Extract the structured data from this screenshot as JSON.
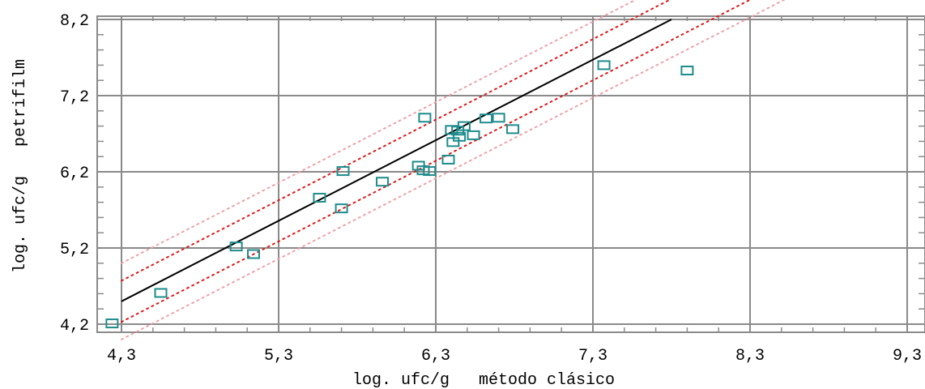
{
  "chart_data": {
    "type": "scatter",
    "title": "",
    "xlabel": "log. ufc/g   método clásico",
    "ylabel": "log. ufc/g   petrifilm",
    "xlim": [
      4.15,
      9.3
    ],
    "ylim": [
      4.15,
      8.2
    ],
    "xticks": [
      4.3,
      5.3,
      6.3,
      7.3,
      8.3,
      9.3
    ],
    "xtick_labels": [
      "4,3",
      "5,3",
      "6,3",
      "7,3",
      "8,3",
      "9,3"
    ],
    "yticks": [
      4.2,
      5.2,
      6.2,
      7.2,
      8.2
    ],
    "ytick_labels": [
      "4,2",
      "5,2",
      "6,2",
      "7,2",
      "8,2"
    ],
    "grid": true,
    "points": {
      "x": [
        4.24,
        4.55,
        5.03,
        5.14,
        5.56,
        5.7,
        5.71,
        5.96,
        6.19,
        6.22,
        6.23,
        6.26,
        6.38,
        6.4,
        6.41,
        6.44,
        6.45,
        6.48,
        6.54,
        6.62,
        6.7,
        6.79,
        7.37,
        7.9
      ],
      "y": [
        4.21,
        4.61,
        5.22,
        5.12,
        5.86,
        5.72,
        6.21,
        6.07,
        6.28,
        6.22,
        6.91,
        6.21,
        6.36,
        6.75,
        6.59,
        6.74,
        6.66,
        6.8,
        6.68,
        6.9,
        6.91,
        6.76,
        7.6,
        7.53
      ]
    },
    "regression_line": {
      "x": [
        4.3,
        7.8
      ],
      "y": [
        4.5,
        8.2
      ]
    },
    "confidence_band": {
      "x": [
        4.3,
        8.3
      ],
      "offset": 0.27
    },
    "prediction_band": {
      "x": [
        4.3,
        8.6
      ],
      "offset": 0.5
    },
    "colors": {
      "points": "#1e8c8c",
      "regression_line": "#000000",
      "confidence_band": "#e01818",
      "prediction_band": "#f0a0a8",
      "grid": "#8a8a8a"
    }
  }
}
